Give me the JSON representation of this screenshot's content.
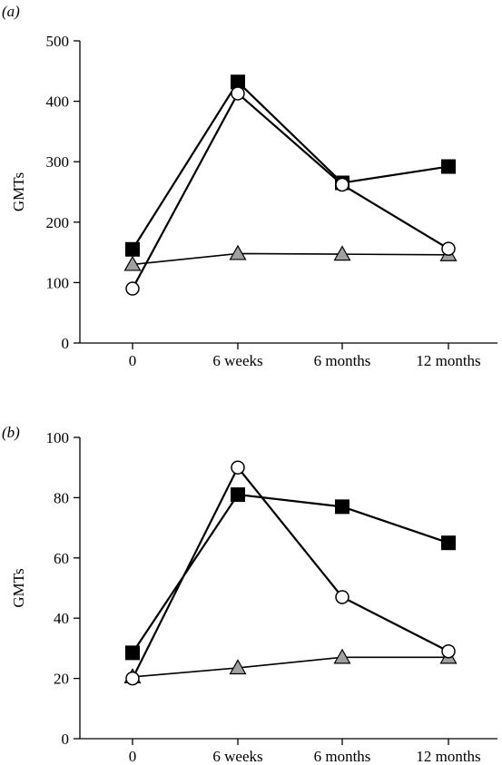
{
  "chart_data": [
    {
      "type": "line",
      "panel_label": "(a)",
      "ylabel": "GMTs",
      "xlabel": "",
      "categories": [
        "0",
        "6 weeks",
        "6 months",
        "12 months"
      ],
      "ylim": [
        0,
        500
      ],
      "yticks": [
        0,
        100,
        200,
        300,
        400,
        500
      ],
      "grid": false,
      "series": [
        {
          "marker": "filled-square",
          "color": "#000000",
          "values": [
            155,
            432,
            265,
            292
          ]
        },
        {
          "marker": "open-circle",
          "color": "#ffffff",
          "values": [
            90,
            413,
            262,
            156
          ]
        },
        {
          "marker": "grey-triangle",
          "color": "#a0a0a0",
          "values": [
            130,
            148,
            147,
            146
          ]
        }
      ]
    },
    {
      "type": "line",
      "panel_label": "(b)",
      "ylabel": "GMTs",
      "xlabel": "",
      "categories": [
        "0",
        "6 weeks",
        "6 months",
        "12 months"
      ],
      "ylim": [
        0,
        100
      ],
      "yticks": [
        0,
        20,
        40,
        60,
        80,
        100
      ],
      "grid": false,
      "series": [
        {
          "marker": "filled-square",
          "color": "#000000",
          "values": [
            28.5,
            81,
            77,
            65
          ]
        },
        {
          "marker": "open-circle",
          "color": "#ffffff",
          "values": [
            20,
            90,
            47,
            29
          ]
        },
        {
          "marker": "grey-triangle",
          "color": "#a0a0a0",
          "values": [
            20.5,
            23.5,
            27,
            27
          ]
        }
      ]
    }
  ]
}
